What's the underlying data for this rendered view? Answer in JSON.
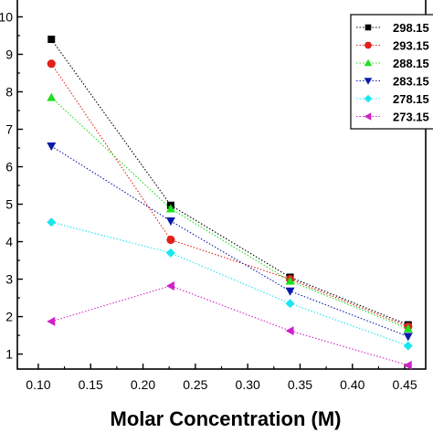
{
  "chart_data": {
    "type": "line",
    "xlabel": "Molar Concentration (M)",
    "ylabel": "",
    "xlim": [
      0.08,
      0.47
    ],
    "ylim": [
      0.6,
      10.45
    ],
    "x_ticks": [
      "0.10",
      "0.15",
      "0.20",
      "0.25",
      "0.30",
      "0.35",
      "0.40",
      "0.45"
    ],
    "y_ticks": [
      "1",
      "2",
      "3",
      "4",
      "5",
      "6",
      "7",
      "8",
      "9",
      "10"
    ],
    "y_tick_values": [
      1,
      2,
      3,
      4,
      5,
      6,
      7,
      8,
      9,
      10
    ],
    "x_tick_values": [
      0.1,
      0.15,
      0.2,
      0.25,
      0.3,
      0.35,
      0.4,
      0.45
    ],
    "x": [
      0.1125,
      0.2265,
      0.3405,
      0.4532
    ],
    "legend_position": "top-right",
    "grid": false,
    "series": [
      {
        "name": "298.15",
        "color": "#000000",
        "marker": "square",
        "values": [
          9.4,
          4.97,
          3.05,
          1.78
        ]
      },
      {
        "name": "293.15",
        "color": "#e0201b",
        "marker": "circle",
        "values": [
          8.75,
          4.05,
          3.0,
          1.73
        ]
      },
      {
        "name": "288.15",
        "color": "#1ee01e",
        "marker": "triangle-up",
        "values": [
          7.85,
          4.88,
          2.95,
          1.68
        ]
      },
      {
        "name": "283.15",
        "color": "#0a1aa8",
        "marker": "triangle-down",
        "values": [
          6.55,
          4.55,
          2.68,
          1.47
        ]
      },
      {
        "name": "278.15",
        "color": "#19e6f0",
        "marker": "diamond",
        "values": [
          4.52,
          3.7,
          2.35,
          1.22
        ]
      },
      {
        "name": "273.15",
        "color": "#d020c8",
        "marker": "triangle-left",
        "values": [
          1.87,
          2.82,
          1.62,
          0.7
        ]
      }
    ]
  }
}
